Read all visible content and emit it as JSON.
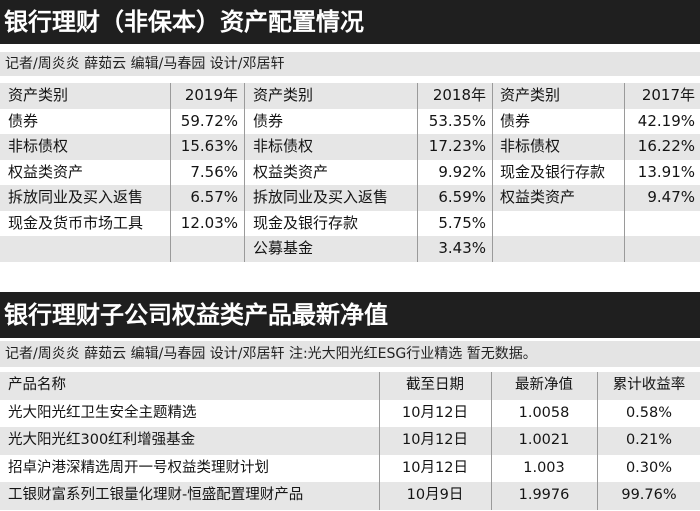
{
  "table1": {
    "title": "银行理财（非保本）资产配置情况",
    "credit": "记者/周炎炎 薛茹云 编辑/马春园 设计/邓居轩",
    "columns": [
      {
        "header_name": "资产类别",
        "header_year": "2019年",
        "rows": [
          {
            "name": "债券",
            "value": "59.72%"
          },
          {
            "name": "非标债权",
            "value": "15.63%"
          },
          {
            "name": "权益类资产",
            "value": "7.56%"
          },
          {
            "name": "拆放同业及买入返售",
            "value": "6.57%"
          },
          {
            "name": "现金及货币市场工具",
            "value": "12.03%"
          },
          {
            "name": "",
            "value": ""
          }
        ]
      },
      {
        "header_name": "资产类别",
        "header_year": "2018年",
        "rows": [
          {
            "name": "债券",
            "value": "53.35%"
          },
          {
            "name": "非标债权",
            "value": "17.23%"
          },
          {
            "name": "权益类资产",
            "value": "9.92%"
          },
          {
            "name": "拆放同业及买入返售",
            "value": "6.59%"
          },
          {
            "name": "现金及银行存款",
            "value": "5.75%"
          },
          {
            "name": "公募基金",
            "value": "3.43%"
          }
        ]
      },
      {
        "header_name": "资产类别",
        "header_year": "2017年",
        "rows": [
          {
            "name": "债券",
            "value": "42.19%"
          },
          {
            "name": "非标债权",
            "value": "16.22%"
          },
          {
            "name": "现金及银行存款",
            "value": "13.91%"
          },
          {
            "name": "权益类资产",
            "value": "9.47%"
          },
          {
            "name": "",
            "value": ""
          },
          {
            "name": "",
            "value": ""
          }
        ]
      }
    ]
  },
  "table2": {
    "title": "银行理财子公司权益类产品最新净值",
    "credit": "记者/周炎炎 薛茹云 编辑/马春园 设计/邓居轩   注:光大阳光红ESG行业精选 暂无数据。",
    "headers": [
      "产品名称",
      "截至日期",
      "最新净值",
      "累计收益率"
    ],
    "rows": [
      [
        "光大阳光红卫生安全主题精选",
        "10月12日",
        "1.0058",
        "0.58%"
      ],
      [
        "光大阳光红300红利增强基金",
        "10月12日",
        "1.0021",
        "0.21%"
      ],
      [
        "招卓沪港深精选周开一号权益类理财计划",
        "10月12日",
        "1.003",
        "0.30%"
      ],
      [
        "工银财富系列工银量化理财-恒盛配置理财产品",
        "10月9日",
        "1.9976",
        "99.76%"
      ]
    ]
  },
  "colors": {
    "title_bg": "#1f1f1f",
    "credit_bg": "#e4e4e4",
    "row_shade": "#e6e6e6",
    "row_plain": "#ffffff"
  }
}
